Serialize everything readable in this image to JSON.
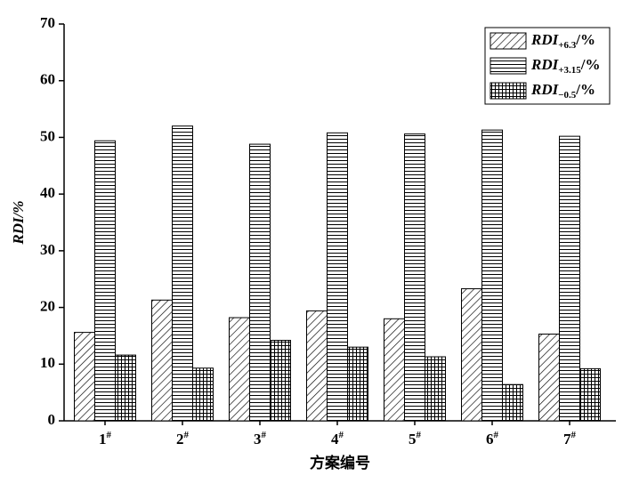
{
  "chart_data": {
    "type": "bar",
    "y_label": "RDI/%",
    "x_label": "方案编号",
    "categories": [
      "1#",
      "2#",
      "3#",
      "4#",
      "5#",
      "6#",
      "7#"
    ],
    "series": [
      {
        "name": "RDI+6.3/%",
        "color": "#000000",
        "pattern": "diagonal",
        "values": [
          15.6,
          21.3,
          18.2,
          19.4,
          18.0,
          23.3,
          15.3
        ]
      },
      {
        "name": "RDI+3.15/%",
        "color": "#000000",
        "pattern": "horizontal",
        "values": [
          49.4,
          52.0,
          48.8,
          50.8,
          50.6,
          51.3,
          50.2
        ]
      },
      {
        "name": "RDI−0.5/%",
        "color": "#000000",
        "pattern": "crosshatch",
        "values": [
          11.6,
          9.3,
          14.2,
          13.0,
          11.3,
          6.4,
          9.2
        ]
      }
    ],
    "ylim": [
      0,
      70
    ],
    "yticks": [
      0,
      10,
      20,
      30,
      40,
      50,
      60,
      70
    ],
    "legend": "upper-right"
  }
}
